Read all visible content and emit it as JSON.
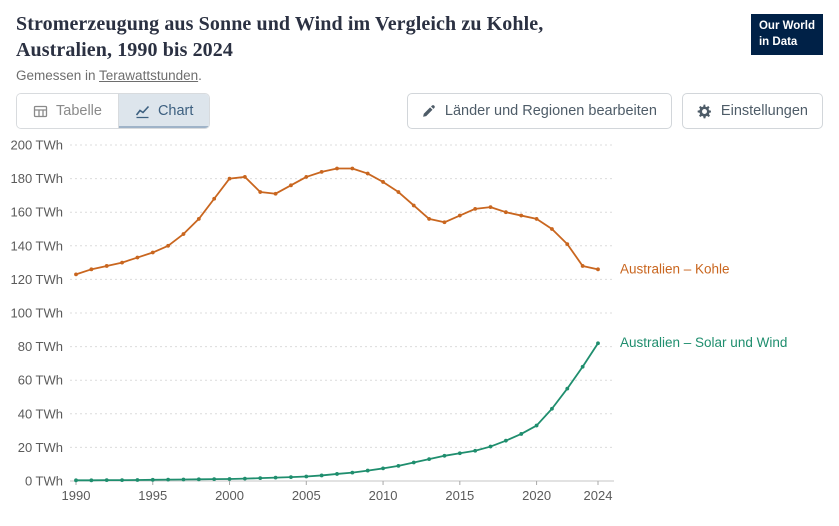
{
  "colors": {
    "kohle": "#c9661f",
    "solar_wind": "#1f8e6e",
    "logo_bg": "#002147"
  },
  "header": {
    "title": "Stromerzeugung aus Sonne und Wind im Vergleich zu Kohle, Australien, 1990 bis 2024",
    "subtitle_prefix": "Gemessen in ",
    "subtitle_link": "Terawattstunden",
    "subtitle_suffix": ".",
    "logo_line1": "Our World",
    "logo_line2": "in Data"
  },
  "toolbar": {
    "tab_table": "Tabelle",
    "tab_chart": "Chart",
    "edit_countries_label": "Länder und Regionen bearbeiten",
    "settings_label": "Einstellungen"
  },
  "chart_data": {
    "type": "line",
    "title": "Stromerzeugung aus Sonne und Wind im Vergleich zu Kohle, Australien, 1990 bis 2024",
    "unit": "TWh",
    "ylim": [
      0,
      200
    ],
    "xlim": [
      1990,
      2024
    ],
    "yticks": [
      0,
      20,
      40,
      60,
      80,
      100,
      120,
      140,
      160,
      180,
      200
    ],
    "xticks": [
      1990,
      1995,
      2000,
      2005,
      2010,
      2015,
      2020,
      2024
    ],
    "grid": "horizontal-dashed",
    "legend_position": "right-end-labels",
    "x": [
      1990,
      1991,
      1992,
      1993,
      1994,
      1995,
      1996,
      1997,
      1998,
      1999,
      2000,
      2001,
      2002,
      2003,
      2004,
      2005,
      2006,
      2007,
      2008,
      2009,
      2010,
      2011,
      2012,
      2013,
      2014,
      2015,
      2016,
      2017,
      2018,
      2019,
      2020,
      2021,
      2022,
      2023,
      2024
    ],
    "series": [
      {
        "name": "Australien – Kohle",
        "color": "#c9661f",
        "values": [
          123,
          126,
          128,
          130,
          133,
          136,
          140,
          147,
          156,
          168,
          180,
          181,
          172,
          171,
          176,
          181,
          184,
          186,
          186,
          183,
          178,
          172,
          164,
          156,
          154,
          158,
          162,
          163,
          160,
          158,
          156,
          150,
          141,
          128,
          126
        ]
      },
      {
        "name": "Australien – Solar und Wind",
        "color": "#1f8e6e",
        "values": [
          0.4,
          0.4,
          0.5,
          0.5,
          0.6,
          0.7,
          0.8,
          0.9,
          1.0,
          1.1,
          1.2,
          1.4,
          1.7,
          2.0,
          2.3,
          2.7,
          3.3,
          4.2,
          5.0,
          6.2,
          7.5,
          9.0,
          11,
          13,
          15,
          16.5,
          18,
          20.5,
          24,
          28,
          33,
          43,
          55,
          68,
          82
        ]
      }
    ]
  }
}
